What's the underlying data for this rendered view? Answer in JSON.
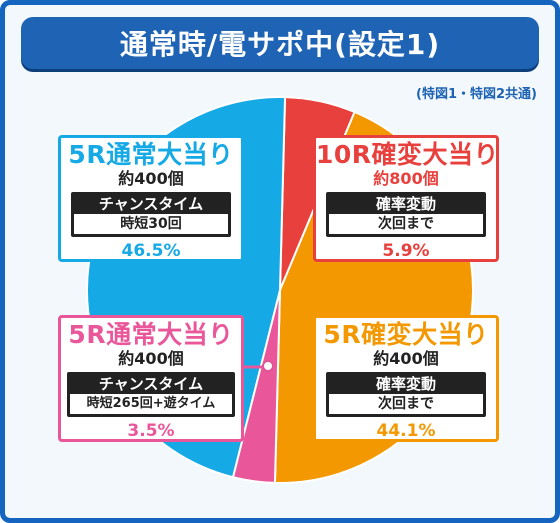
{
  "title": "通常時/電サポ中(設定1)",
  "note": "(特図1・特図2共通)",
  "colors": {
    "frame": "#1565c0",
    "title_bg": "#1e63b4",
    "background": "#f3f8fd"
  },
  "chart_data": {
    "type": "pie",
    "title": "通常時/電サポ中(設定1)",
    "slices": [
      {
        "label": "10R確変大当り",
        "value": 5.9,
        "pct_text": "5.9%",
        "balls": "約800個",
        "box_label": "確率変動",
        "box_value": "次回まで",
        "color": "#e8403c"
      },
      {
        "label": "5R確変大当り",
        "value": 44.1,
        "pct_text": "44.1%",
        "balls": "約400個",
        "box_label": "確率変動",
        "box_value": "次回まで",
        "color": "#f39800"
      },
      {
        "label": "5R通常大当り",
        "value": 3.5,
        "pct_text": "3.5%",
        "balls": "約400個",
        "box_label": "チャンスタイム",
        "box_value": "時短265回+遊タイム",
        "color": "#e9579a"
      },
      {
        "label": "5R通常大当り",
        "value": 46.5,
        "pct_text": "46.5%",
        "balls": "約400個",
        "box_label": "チャンスタイム",
        "box_value": "時短30回",
        "color": "#15a9e6"
      }
    ]
  }
}
